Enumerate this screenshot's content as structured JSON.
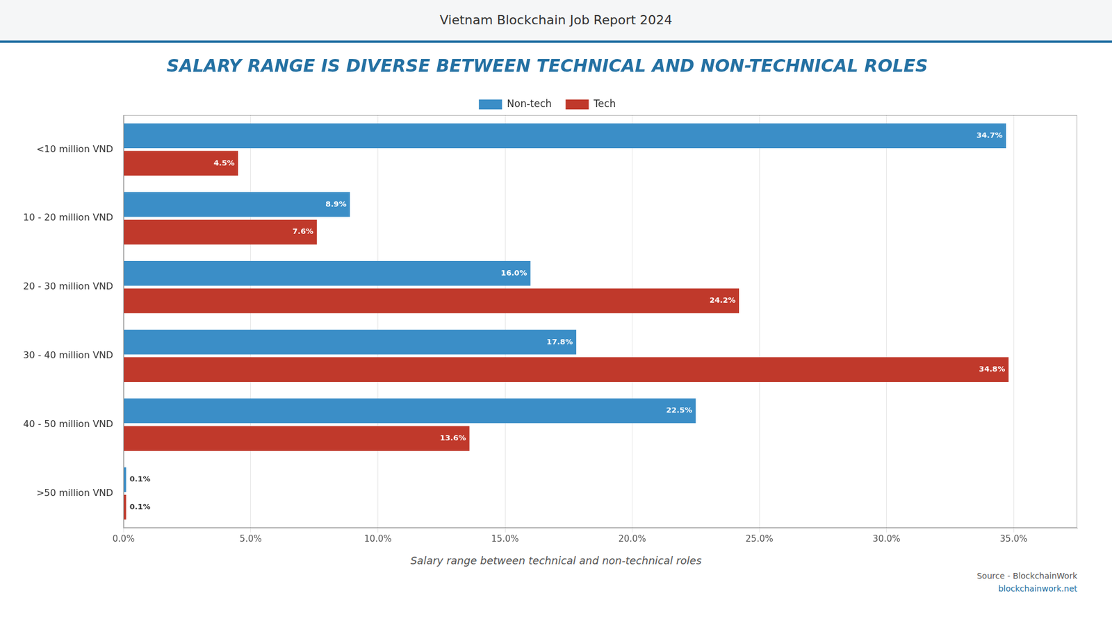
{
  "chart_data": {
    "type": "bar",
    "orientation": "horizontal",
    "title": "SALARY RANGE IS DIVERSE BETWEEN TECHNICAL AND NON-TECHNICAL ROLES",
    "subtitle": "Vietnam Blockchain Job Report 2024",
    "caption": "Salary range between technical and non-technical roles",
    "source": [
      "Source - BlockchainWork",
      "blockchainwork.net"
    ],
    "categories": [
      "<10 million VND",
      "10 - 20 million VND",
      "20 - 30 million VND",
      "30 - 40 million VND",
      "40 - 50 million VND",
      ">50 million VND"
    ],
    "series": [
      {
        "name": "Non-tech",
        "color": "#3B8EC7",
        "values": [
          34.7,
          8.9,
          16.0,
          17.8,
          22.5,
          0.1
        ],
        "value_labels": [
          "34.7%",
          "8.9%",
          "16.0%",
          "17.8%",
          "22.5%",
          "0.1%"
        ]
      },
      {
        "name": "Tech",
        "color": "#C0392B",
        "values": [
          4.5,
          7.6,
          24.2,
          34.8,
          13.6,
          0.1
        ],
        "value_labels": [
          "4.5%",
          "7.6%",
          "24.2%",
          "34.8%",
          "13.6%",
          "0.1%"
        ]
      }
    ],
    "xlim": [
      0,
      37.5
    ],
    "xticks": [
      {
        "value": 0.0,
        "label": "0.0%"
      },
      {
        "value": 5.0,
        "label": "5.0%"
      },
      {
        "value": 10.0,
        "label": "10.0%"
      },
      {
        "value": 15.0,
        "label": "15.0%"
      },
      {
        "value": 20.0,
        "label": "20.0%"
      },
      {
        "value": 25.0,
        "label": "25.0%"
      },
      {
        "value": 30.0,
        "label": "30.0%"
      },
      {
        "value": 35.0,
        "label": "35.0%"
      }
    ],
    "grid": true,
    "legend": "top",
    "data_labels": true
  }
}
